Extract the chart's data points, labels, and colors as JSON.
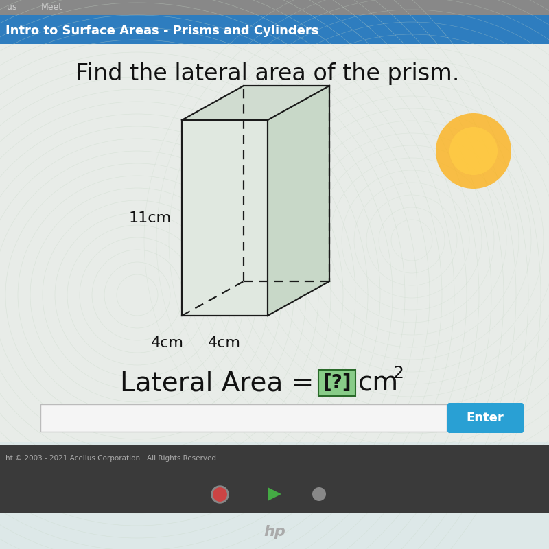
{
  "bg_top_bar": "#888888",
  "header_color": "#2e7dbf",
  "header_text": "Intro to Surface Areas - Prisms and Cylinders",
  "header_text_color": "#ffffff",
  "content_bg": "#dde8e8",
  "title_text": "Find the lateral area of the prism.",
  "title_fontsize": 24,
  "dim_11cm": "11cm",
  "dim_4cm_left": "4cm",
  "dim_4cm_bottom": "4cm",
  "lateral_area_text": "Lateral Area = ",
  "bracket_text": "[?]",
  "units_text": "cm²",
  "enter_button_color": "#29a0d4",
  "enter_button_text": "Enter",
  "enter_button_text_color": "#ffffff",
  "copyright_text": "ht © 2003 - 2021 Acellus Corporation.  All Rights Reserved.",
  "prism_face_color": "#e0e8e0",
  "prism_edge_color": "#1a1a1a",
  "prism_top_color": "#d0dcd0",
  "prism_right_color": "#c8d8c8",
  "bottom_bar_color": "#3a3a3a"
}
